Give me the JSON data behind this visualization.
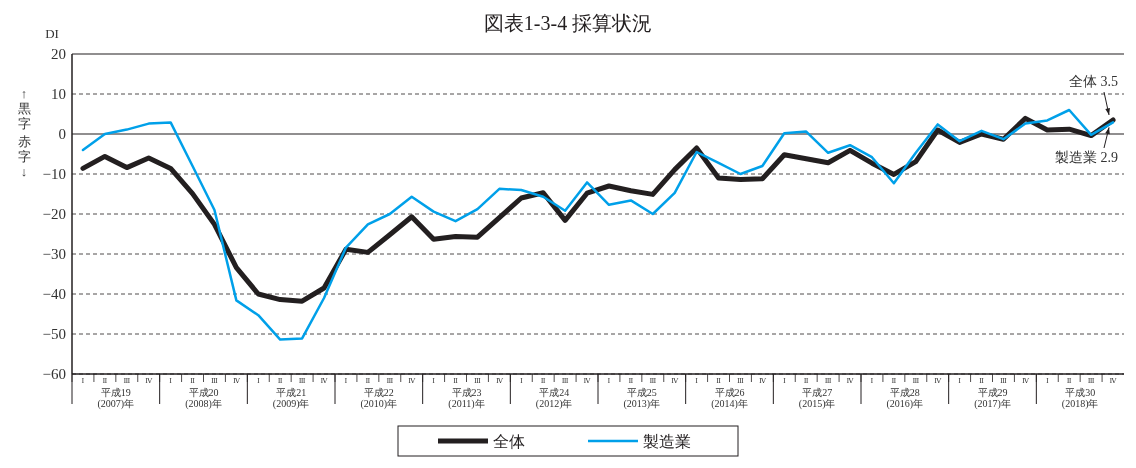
{
  "chart_data": {
    "type": "line",
    "title": "図表1-3-4 採算状況",
    "ylabel": "DI",
    "categories": [
      "Ⅰ",
      "Ⅱ",
      "Ⅲ",
      "Ⅳ",
      "Ⅰ",
      "Ⅱ",
      "Ⅲ",
      "Ⅳ",
      "Ⅰ",
      "Ⅱ",
      "Ⅲ",
      "Ⅳ",
      "Ⅰ",
      "Ⅱ",
      "Ⅲ",
      "Ⅳ",
      "Ⅰ",
      "Ⅱ",
      "Ⅲ",
      "Ⅳ",
      "Ⅰ",
      "Ⅱ",
      "Ⅲ",
      "Ⅳ",
      "Ⅰ",
      "Ⅱ",
      "Ⅲ",
      "Ⅳ",
      "Ⅰ",
      "Ⅱ",
      "Ⅲ",
      "Ⅳ",
      "Ⅰ",
      "Ⅱ",
      "Ⅲ",
      "Ⅳ",
      "Ⅰ",
      "Ⅱ",
      "Ⅲ",
      "Ⅳ",
      "Ⅰ",
      "Ⅱ",
      "Ⅲ",
      "Ⅳ",
      "Ⅰ",
      "Ⅱ",
      "Ⅲ",
      "Ⅳ"
    ],
    "series": [
      {
        "name": "全体",
        "color": "#231f20",
        "values": [
          -8.6,
          -5.6,
          -8.4,
          -6.0,
          -8.6,
          -14.9,
          -22.6,
          -33.4,
          -40.0,
          -41.4,
          -41.8,
          -38.5,
          -28.8,
          -29.6,
          -25.2,
          -20.7,
          -26.3,
          -25.6,
          -25.8,
          -20.9,
          -16.0,
          -14.7,
          -21.6,
          -14.8,
          -13.0,
          -14.2,
          -15.1,
          -8.9,
          -3.5,
          -11.0,
          -11.4,
          -11.2,
          -5.2,
          -6.2,
          -7.2,
          -4.1,
          -7.3,
          -10.1,
          -6.9,
          1.0,
          -2.1,
          0.0,
          -1.3,
          3.9,
          1.0,
          1.2,
          -0.4,
          3.5
        ]
      },
      {
        "name": "製造業",
        "color": "#00a0e9",
        "values": [
          -4.0,
          0.0,
          1.1,
          2.6,
          2.9,
          -8.0,
          -19.0,
          -41.6,
          -45.3,
          -51.4,
          -51.1,
          -41.0,
          -28.4,
          -22.6,
          -20.0,
          -15.7,
          -19.4,
          -21.8,
          -18.8,
          -13.7,
          -14.0,
          -15.7,
          -19.2,
          -12.1,
          -17.7,
          -16.6,
          -20.0,
          -14.7,
          -4.5,
          -7.2,
          -10.0,
          -8.0,
          0.2,
          0.6,
          -4.7,
          -2.8,
          -5.8,
          -12.3,
          -4.7,
          2.4,
          -1.8,
          0.8,
          -1.3,
          2.6,
          3.4,
          6.0,
          -0.2,
          2.9
        ]
      }
    ],
    "ylim": [
      -60,
      20
    ],
    "yticks": [
      -60,
      -50,
      -40,
      -30,
      -20,
      -10,
      0,
      10,
      20
    ],
    "grid": "y",
    "legend": "bottom",
    "marker": "none",
    "line_style": "solid",
    "annotations": [
      "全体 3.5",
      "製造業 2.9",
      "↑黒字",
      "赤字↓",
      "平成19 (2007)年",
      "平成20 (2008)年",
      "平成21 (2009)年",
      "平成22 (2010)年",
      "平成23 (2011)年",
      "平成24 (2012)年",
      "平成25 (2013)年",
      "平成26 (2014)年",
      "平成27 (2015)年",
      "平成28 (2016)年",
      "平成29 (2017)年",
      "平成30 (2018)年"
    ]
  }
}
